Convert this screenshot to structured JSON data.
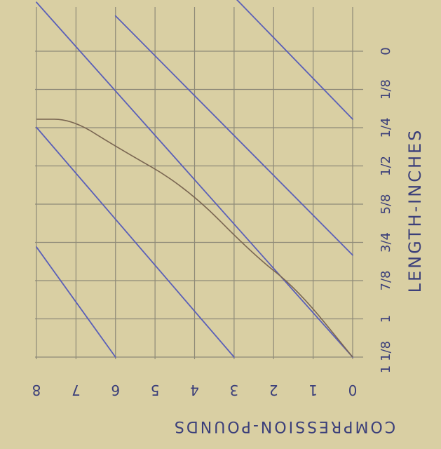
{
  "chart_data": {
    "type": "line",
    "title": "",
    "xlabel": "COMPRESSION-POUNDS",
    "ylabel": "LENGTH-INCHES",
    "xlim": [
      0,
      8
    ],
    "ylim": [
      0,
      1.125
    ],
    "x_tick_labels": [
      "8",
      "7",
      "6",
      "5",
      "4",
      "3",
      "2",
      "1",
      "0"
    ],
    "y_tick_labels": [
      "0",
      "1/8",
      "1/4",
      "1/2",
      "5/8",
      "3/4",
      "7/8",
      "1",
      "1 1/8"
    ],
    "grid": true,
    "series": [
      {
        "values": [
          {
            "x": 0.0,
            "y": 1.125
          },
          {
            "x": 1.4,
            "y": 0.875
          },
          {
            "x": 2.5,
            "y": 0.75
          },
          {
            "x": 4.2,
            "y": 0.5
          },
          {
            "x": 6.0,
            "y": 0.35
          },
          {
            "x": 7.1,
            "y": 0.25
          },
          {
            "x": 8.0,
            "y": 0.25
          }
        ]
      }
    ],
    "reference_lines": [
      {
        "from": {
          "x": 0,
          "y": 1.125
        },
        "to": {
          "x": 8,
          "y": -0.18
        }
      },
      {
        "from": {
          "x": 0,
          "y": 0.75
        },
        "to": {
          "x": 6,
          "y": -0.13
        }
      },
      {
        "from": {
          "x": 0,
          "y": 0.25
        },
        "to": {
          "x": 3,
          "y": -0.2
        }
      },
      {
        "from": {
          "x": 6,
          "y": 1.125
        },
        "to": {
          "x": 8,
          "y": 0.72
        }
      },
      {
        "from": {
          "x": 3,
          "y": 1.125
        },
        "to": {
          "x": 8,
          "y": 0.28
        }
      }
    ],
    "colors": {
      "paper": "#d9cfa3",
      "grid": "#8e8a78",
      "curve": "#7a6652",
      "reference": "#5a5fb8",
      "ink": "#3b3f7a"
    }
  }
}
